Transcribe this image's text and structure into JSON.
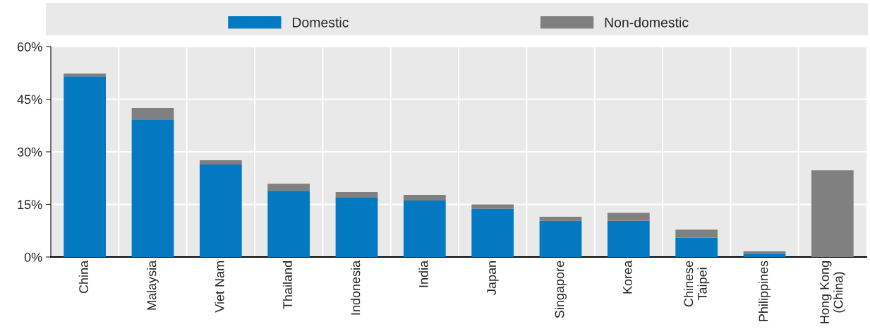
{
  "chart_data": {
    "type": "bar",
    "stacked": true,
    "categories": [
      "China",
      "Malaysia",
      "Viet Nam",
      "Thailand",
      "Indonesia",
      "India",
      "Japan",
      "Singapore",
      "Korea",
      "Chinese\nTaipei",
      "Philippines",
      "Hong Kong\n(China)"
    ],
    "series": [
      {
        "name": "Domestic",
        "color": "#0279c0",
        "values": [
          51.5,
          39.2,
          26.4,
          18.9,
          16.9,
          16.1,
          13.8,
          10.3,
          10.3,
          5.5,
          0.8,
          0
        ]
      },
      {
        "name": "Non-domestic",
        "color": "#808080",
        "values": [
          0.8,
          3.3,
          1.2,
          2.0,
          1.6,
          1.6,
          1.2,
          1.2,
          2.3,
          2.3,
          0.8,
          24.7
        ]
      }
    ],
    "ylim": [
      0,
      60
    ],
    "yticks": [
      {
        "value": 0,
        "label": "0%"
      },
      {
        "value": 15,
        "label": "15%"
      },
      {
        "value": 30,
        "label": "30%"
      },
      {
        "value": 45,
        "label": "45%"
      },
      {
        "value": 60,
        "label": "60%"
      }
    ],
    "grid": true,
    "legend": "top"
  }
}
